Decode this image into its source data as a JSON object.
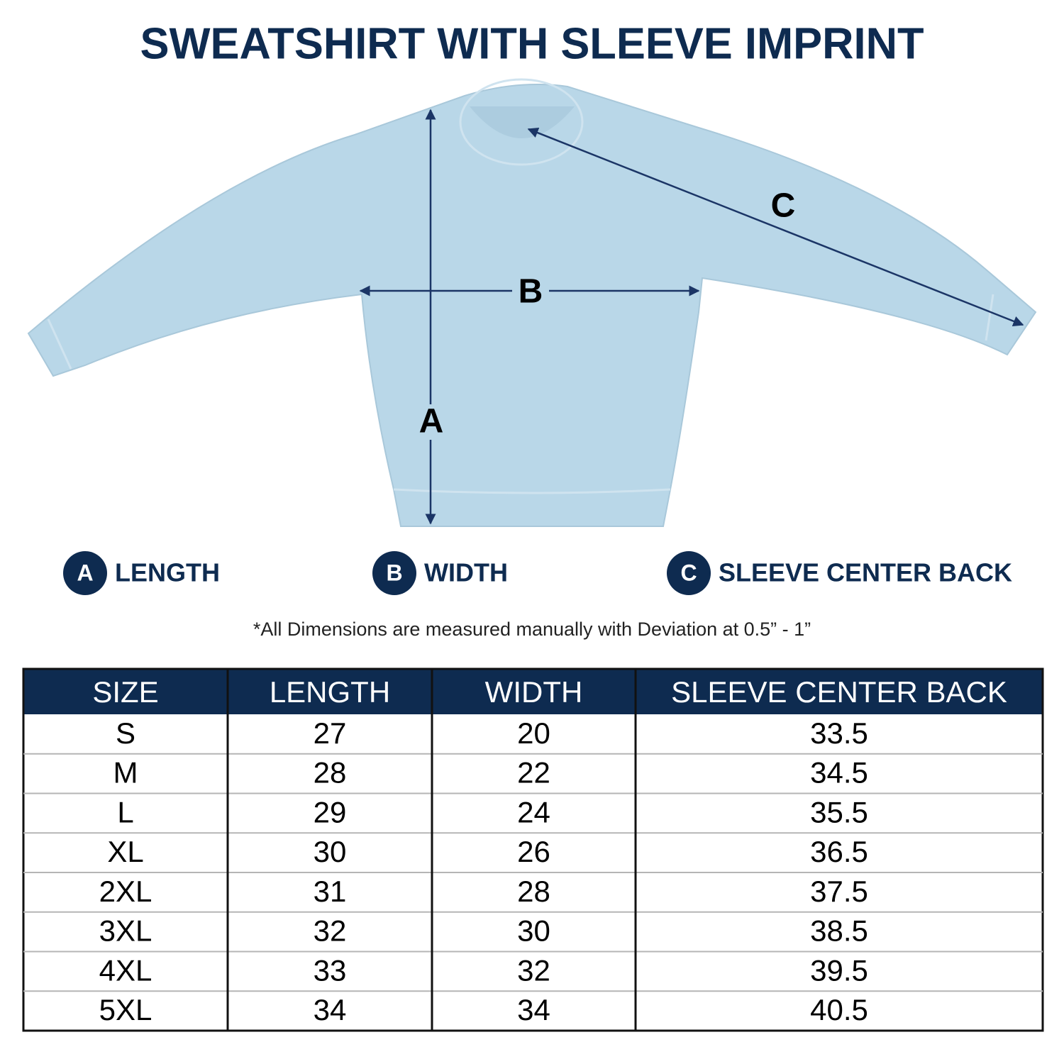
{
  "title": "SWEATSHIRT WITH SLEEVE IMPRINT",
  "diagram": {
    "labels": [
      "A",
      "B",
      "C"
    ]
  },
  "legend": [
    {
      "letter": "A",
      "label": "LENGTH"
    },
    {
      "letter": "B",
      "label": "WIDTH"
    },
    {
      "letter": "C",
      "label": "SLEEVE CENTER BACK"
    }
  ],
  "note": "*All Dimensions are measured manually with Deviation at 0.5” - 1”",
  "table": {
    "header": [
      "SIZE",
      "LENGTH",
      "WIDTH",
      "SLEEVE CENTER BACK"
    ],
    "rows": [
      [
        "S",
        27,
        20,
        33.5
      ],
      [
        "M",
        28,
        22,
        34.5
      ],
      [
        "L",
        29,
        24,
        35.5
      ],
      [
        "XL",
        30,
        26,
        36.5
      ],
      [
        "2XL",
        31,
        28,
        37.5
      ],
      [
        "3XL",
        32,
        30,
        38.5
      ],
      [
        "4XL",
        33,
        32,
        39.5
      ],
      [
        "5XL",
        34,
        34,
        40.5
      ]
    ]
  }
}
